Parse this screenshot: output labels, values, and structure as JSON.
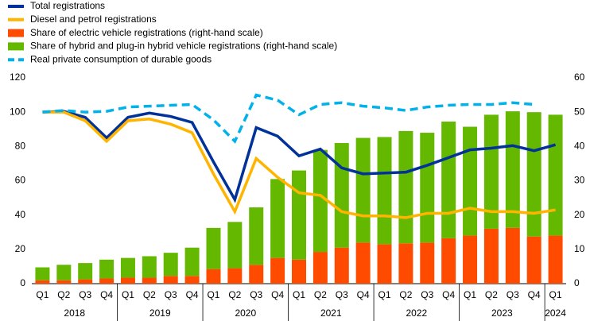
{
  "chart_data": {
    "type": "combo",
    "categories": [
      "Q1",
      "Q2",
      "Q3",
      "Q4",
      "Q1",
      "Q2",
      "Q3",
      "Q4",
      "Q1",
      "Q2",
      "Q3",
      "Q4",
      "Q1",
      "Q2",
      "Q3",
      "Q4",
      "Q1",
      "Q2",
      "Q3",
      "Q4",
      "Q1",
      "Q2",
      "Q3",
      "Q4",
      "Q1"
    ],
    "years": [
      "2018",
      "2019",
      "2020",
      "2021",
      "2022",
      "2023",
      "2024"
    ],
    "ylim": [
      0,
      120
    ],
    "yticks": [
      0,
      20,
      40,
      60,
      80,
      100,
      120
    ],
    "y2lim": [
      0,
      60
    ],
    "y2ticks": [
      0,
      10,
      20,
      30,
      40,
      50,
      60
    ],
    "series": [
      {
        "name": "Total registrations",
        "kind": "line",
        "color": "#003299",
        "values": [
          100,
          100.5,
          97,
          85,
          97,
          99.5,
          97.5,
          94,
          71,
          49,
          91,
          86,
          74.5,
          78.5,
          67.5,
          64,
          64.5,
          65,
          69,
          73.5,
          78,
          79,
          80.5,
          77.5,
          81
        ]
      },
      {
        "name": "Diesel and petrol registrations",
        "kind": "line",
        "color": "#ffb400",
        "values": [
          100,
          100,
          95,
          83,
          95,
          96,
          93,
          88,
          64,
          42,
          73,
          62,
          53,
          51.5,
          42,
          39.5,
          39.5,
          38.5,
          41,
          41,
          44,
          42,
          42,
          41,
          43
        ]
      },
      {
        "name": "Share of electric vehicle registrations (right-hand scale)",
        "kind": "bar",
        "axis": "y2",
        "color": "#ff4b00",
        "values": [
          1,
          1,
          1.25,
          1.5,
          1.75,
          1.75,
          2.25,
          2.25,
          4.25,
          4.5,
          5.5,
          7.5,
          7,
          9.25,
          10.5,
          12,
          11.5,
          11.75,
          12,
          13.25,
          14,
          16,
          16.25,
          13.75,
          14
        ]
      },
      {
        "name": "Share of hybrid and plug-in hybrid vehicle registrations (right-hand scale)",
        "kind": "bar",
        "axis": "y2",
        "color": "#65b800",
        "values": [
          3.75,
          4.5,
          4.75,
          5.5,
          5.75,
          6.25,
          6.75,
          8.25,
          12,
          13.5,
          16.75,
          23,
          26,
          29.75,
          30.5,
          30.5,
          31.25,
          32.75,
          32,
          34,
          31.75,
          33.25,
          34,
          36.25,
          35.25
        ]
      },
      {
        "name": "Real private consumption of durable goods",
        "kind": "line",
        "dash": true,
        "color": "#00b1ea",
        "values": [
          100,
          101,
          100,
          100.5,
          103,
          103.5,
          104,
          104.5,
          95.5,
          83,
          110,
          107,
          98.5,
          104.5,
          105.5,
          103.5,
          102.5,
          101,
          103,
          104,
          104.5,
          104.5,
          105.5,
          104.5,
          null
        ]
      }
    ]
  }
}
